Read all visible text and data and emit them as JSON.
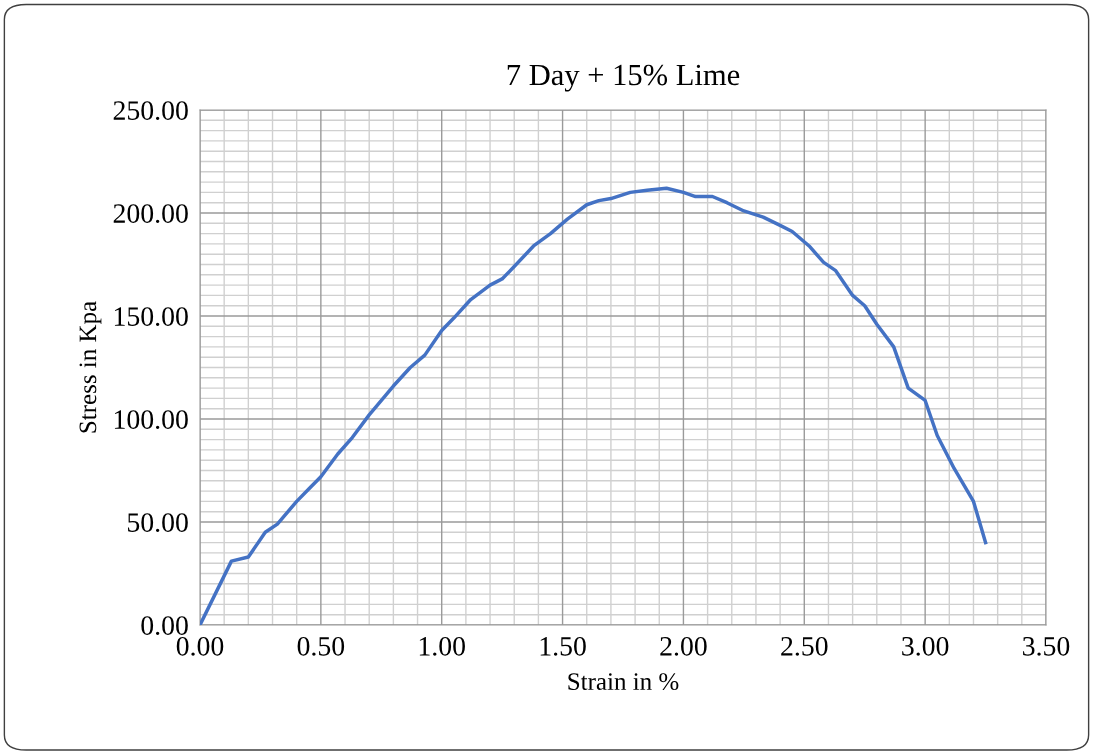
{
  "chart_data": {
    "type": "line",
    "title": "7 Day + 15% Lime",
    "xlabel": "Strain in %",
    "ylabel": "Stress in Kpa",
    "series": [
      {
        "color": "#4472c4",
        "x": [
          0,
          0.13,
          0.2,
          0.27,
          0.32,
          0.4,
          0.45,
          0.5,
          0.57,
          0.63,
          0.7,
          0.8,
          0.87,
          0.93,
          1.0,
          1.05,
          1.12,
          1.2,
          1.25,
          1.3,
          1.38,
          1.45,
          1.52,
          1.6,
          1.65,
          1.7,
          1.78,
          1.85,
          1.93,
          2.0,
          2.05,
          2.12,
          2.18,
          2.25,
          2.33,
          2.4,
          2.45,
          2.52,
          2.58,
          2.63,
          2.7,
          2.75,
          2.8,
          2.87,
          2.93,
          3.0,
          3.05,
          3.12,
          3.2,
          3.25
        ],
        "values": [
          0,
          31,
          33,
          45,
          49,
          60,
          66,
          72,
          83,
          91,
          102,
          116,
          125,
          131,
          143,
          149,
          158,
          165,
          168,
          174,
          184,
          190,
          197,
          204,
          206,
          207,
          210,
          211,
          212,
          210,
          208,
          208,
          205,
          201,
          198,
          194,
          191,
          184,
          176,
          172,
          160,
          155,
          146,
          135,
          115,
          109,
          92,
          76,
          60,
          40
        ]
      }
    ],
    "xlim": [
      0,
      3.5
    ],
    "ylim": [
      0,
      250
    ],
    "xticks": [
      {
        "value": 0,
        "label": "0.00"
      },
      {
        "value": 0.5,
        "label": "0.50"
      },
      {
        "value": 1,
        "label": "1.00"
      },
      {
        "value": 1.5,
        "label": "1.50"
      },
      {
        "value": 2,
        "label": "2.00"
      },
      {
        "value": 2.5,
        "label": "2.50"
      },
      {
        "value": 3,
        "label": "3.00"
      },
      {
        "value": 3.5,
        "label": "3.50"
      }
    ],
    "yticks": [
      {
        "value": 0,
        "label": "0.00"
      },
      {
        "value": 50,
        "label": "50.00"
      },
      {
        "value": 100,
        "label": "100.00"
      },
      {
        "value": 150,
        "label": "150.00"
      },
      {
        "value": 200,
        "label": "200.00"
      },
      {
        "value": 250,
        "label": "250.00"
      }
    ],
    "grid": true,
    "marker": "none",
    "line_style": "solid"
  }
}
